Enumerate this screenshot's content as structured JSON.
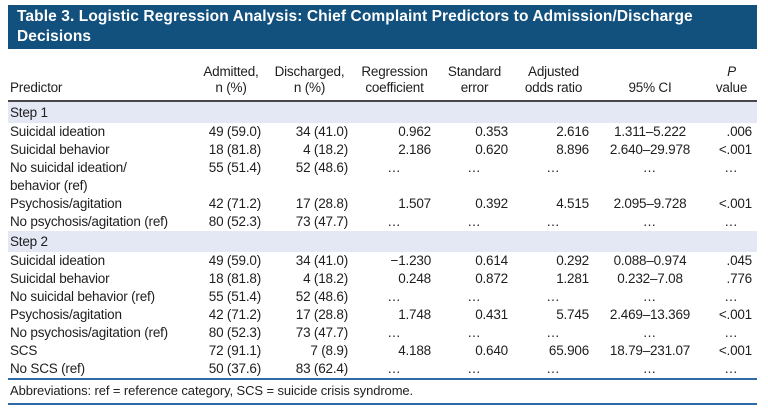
{
  "title": {
    "lines": [
      "Table 3. Logistic Regression Analysis: Chief Complaint Predictors to Admission/Discharge",
      "Decisions"
    ]
  },
  "table": {
    "ellipsis": "…",
    "columns": [
      {
        "key": "predictor",
        "lines": [
          "Predictor"
        ]
      },
      {
        "key": "admitted",
        "lines": [
          "Admitted,",
          "n (%)"
        ]
      },
      {
        "key": "discharged",
        "lines": [
          "Discharged,",
          "n (%)"
        ]
      },
      {
        "key": "regression-coefficient",
        "lines": [
          "Regression",
          "coefficient"
        ]
      },
      {
        "key": "standard-error",
        "lines": [
          "Standard",
          "error"
        ]
      },
      {
        "key": "adjusted-odds-ratio",
        "lines": [
          "Adjusted",
          "odds ratio"
        ]
      },
      {
        "key": "ci",
        "lines": [
          "95% CI"
        ]
      },
      {
        "key": "p-value",
        "lines": [
          "P",
          "value"
        ]
      }
    ],
    "sections": [
      {
        "label": "Step 1",
        "rows": [
          {
            "cells": [
              "Suicidal ideation",
              "49 (59.0)",
              "34 (41.0)",
              "0.962",
              "0.353",
              "2.616",
              "1.311–5.222",
              ".006"
            ]
          },
          {
            "cells": [
              "Suicidal behavior",
              "18 (81.8)",
              "4 (18.2)",
              "2.186",
              "0.620",
              "8.896",
              "2.640–29.978",
              "<.001"
            ]
          },
          {
            "cells": [
              "No suicidal ideation/\nbehavior (ref)",
              "55 (51.4)",
              "52 (48.6)",
              "…",
              "…",
              "…",
              "…",
              "…"
            ]
          },
          {
            "cells": [
              "Psychosis/agitation",
              "42 (71.2)",
              "17 (28.8)",
              "1.507",
              "0.392",
              "4.515",
              "2.095–9.728",
              "<.001"
            ]
          },
          {
            "cells": [
              "No psychosis/agitation (ref)",
              "80 (52.3)",
              "73 (47.7)",
              "…",
              "…",
              "…",
              "…",
              "…"
            ]
          }
        ]
      },
      {
        "label": "Step 2",
        "rows": [
          {
            "cells": [
              "Suicidal ideation",
              "49 (59.0)",
              "34 (41.0)",
              "−1.230",
              "0.614",
              "0.292",
              "0.088–0.974",
              ".045"
            ]
          },
          {
            "cells": [
              "Suicidal behavior",
              "18 (81.8)",
              "4 (18.2)",
              "0.248",
              "0.872",
              "1.281",
              "0.232–7.08",
              ".776"
            ]
          },
          {
            "cells": [
              "No suicidal behavior (ref)",
              "55 (51.4)",
              "52 (48.6)",
              "…",
              "…",
              "…",
              "…",
              "…"
            ]
          },
          {
            "cells": [
              "Psychosis/agitation",
              "42 (71.2)",
              "17 (28.8)",
              "1.748",
              "0.431",
              "5.745",
              "2.469–13.369",
              "<.001"
            ]
          },
          {
            "cells": [
              "No psychosis/agitation (ref)",
              "80 (52.3)",
              "73 (47.7)",
              "…",
              "…",
              "…",
              "…",
              "…"
            ]
          },
          {
            "cells": [
              "SCS",
              "72 (91.1)",
              "7 (8.9)",
              "4.188",
              "0.640",
              "65.906",
              "18.79–231.07",
              "<.001"
            ]
          },
          {
            "cells": [
              "No SCS (ref)",
              "50 (37.6)",
              "83 (62.4)",
              "…",
              "…",
              "…",
              "…",
              "…"
            ]
          }
        ]
      }
    ],
    "footnote": "Abbreviations: ref = reference category, SCS = suicide crisis syndrome."
  },
  "colors": {
    "title_bg": "#12507e",
    "band_bg": "#e4e8f4",
    "rule_dark": "#474747",
    "rule_blue": "#2e6ba6",
    "text": "#1e1e1e"
  }
}
